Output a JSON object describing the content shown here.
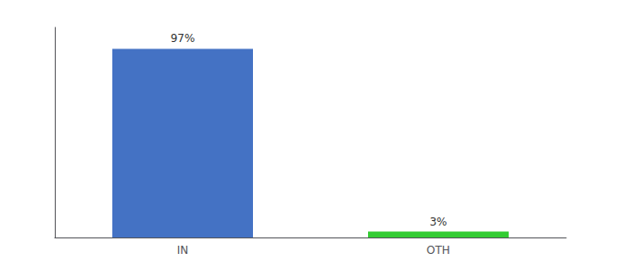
{
  "chart_data": {
    "type": "bar",
    "categories": [
      "IN",
      "OTH"
    ],
    "values": [
      97,
      3
    ],
    "value_labels": [
      "97%",
      "3%"
    ],
    "colors": [
      "#4472c4",
      "#33cc33"
    ],
    "ylim": [
      0,
      108
    ],
    "yticks": [],
    "data_labels": true,
    "tick_labels": "x",
    "grid": false
  }
}
